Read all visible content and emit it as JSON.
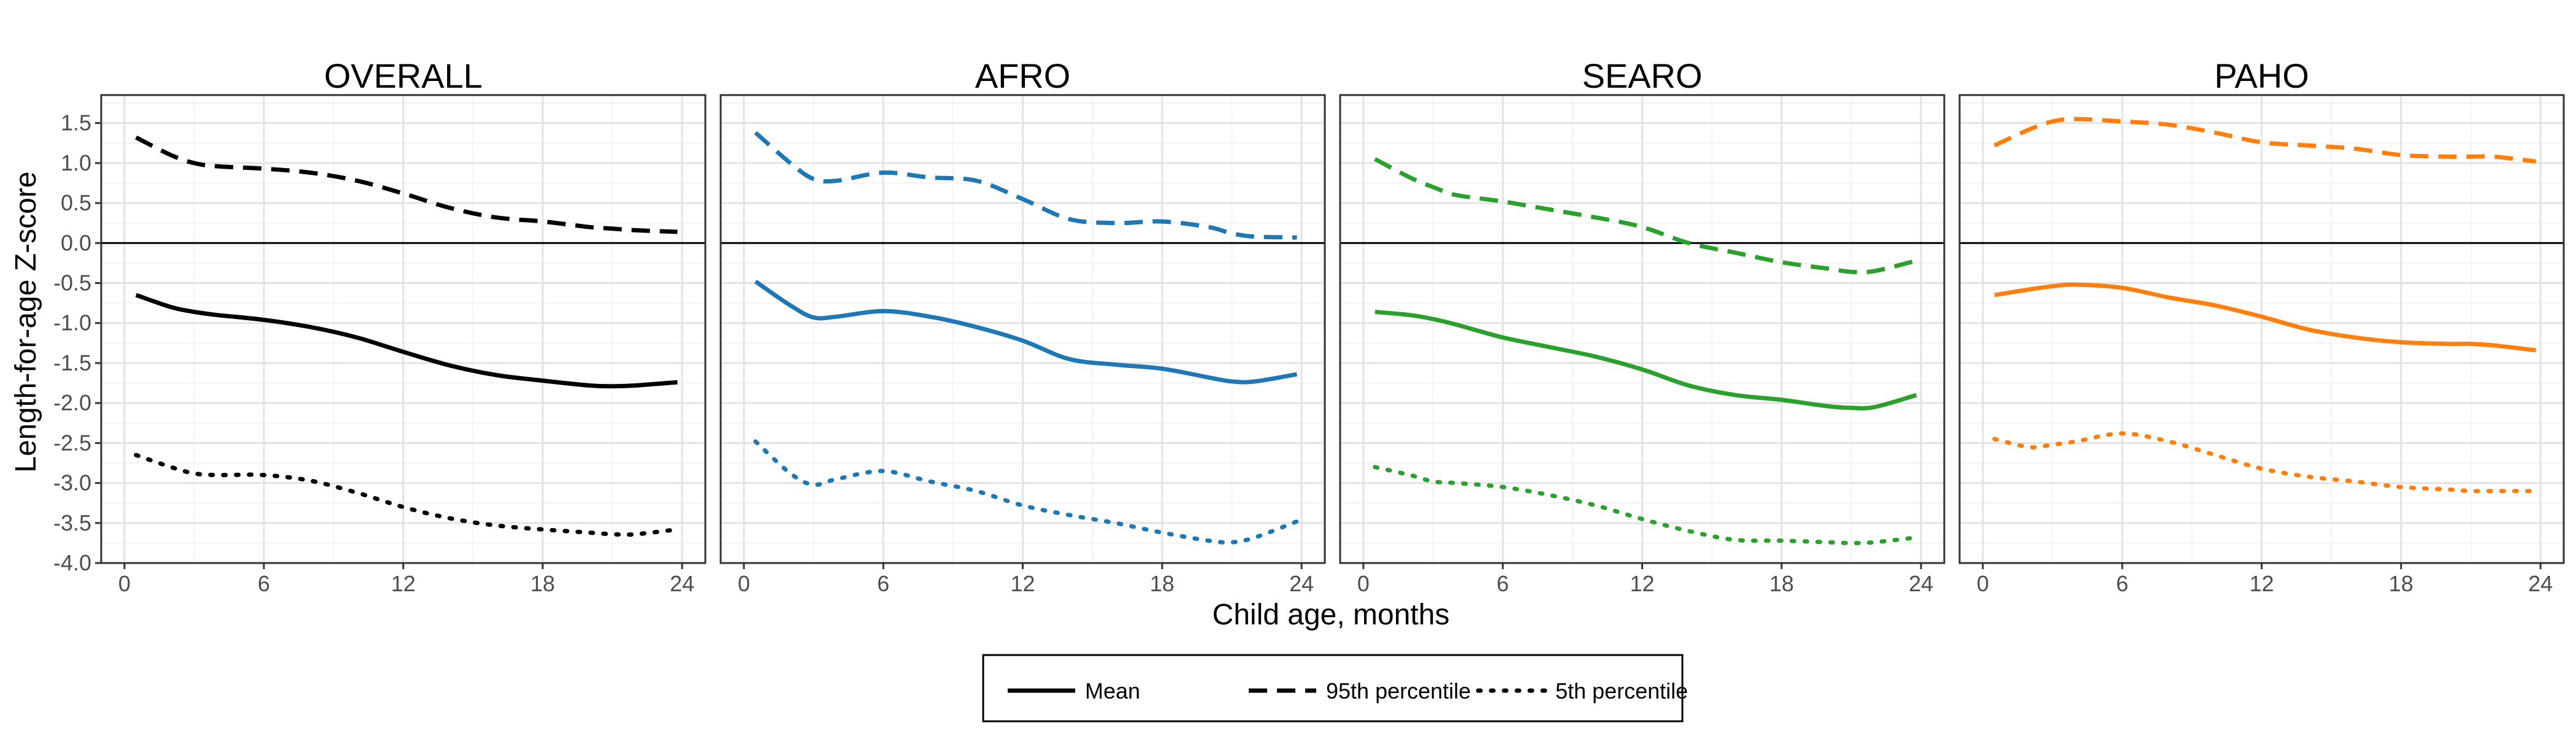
{
  "chart_data": {
    "type": "line",
    "xlabel": "Child age, months",
    "ylabel": "Length-for-age Z-score",
    "xlim": [
      -1,
      25
    ],
    "ylim": [
      -4.0,
      1.85
    ],
    "x_ticks": [
      0,
      6,
      12,
      18,
      24
    ],
    "y_ticks": [
      1.5,
      1.0,
      0.5,
      0.0,
      -0.5,
      -1.0,
      -1.5,
      -2.0,
      -2.5,
      -3.0,
      -3.5,
      -4.0
    ],
    "y_tick_labels": [
      "1.5",
      "1.0",
      "0.5",
      "0.0",
      "-0.5",
      "-1.0",
      "-1.5",
      "-2.0",
      "-2.5",
      "-3.0",
      "-3.5",
      "-4.0"
    ],
    "grid": true,
    "reference_line": 0,
    "legend": {
      "position": "bottom",
      "entries": [
        {
          "label": "Mean",
          "linetype": "solid"
        },
        {
          "label": "95th percentile",
          "linetype": "dashed"
        },
        {
          "label": "5th percentile",
          "linetype": "dotted"
        }
      ]
    },
    "x": [
      0.5,
      2,
      3,
      4,
      6,
      8,
      10,
      12,
      14,
      16,
      18,
      20,
      21,
      22,
      23.8
    ],
    "panels": [
      {
        "title": "OVERALL",
        "color": "#000000",
        "series": [
          {
            "name": "Mean",
            "values": [
              -0.65,
              -0.8,
              -0.86,
              -0.9,
              -0.96,
              -1.05,
              -1.18,
              -1.36,
              -1.53,
              -1.65,
              -1.72,
              -1.78,
              -1.79,
              -1.78,
              -1.74
            ]
          },
          {
            "name": "95th percentile",
            "values": [
              1.32,
              1.1,
              1.0,
              0.96,
              0.93,
              0.88,
              0.78,
              0.62,
              0.44,
              0.32,
              0.27,
              0.2,
              0.18,
              0.16,
              0.14
            ]
          },
          {
            "name": "5th percentile",
            "values": [
              -2.65,
              -2.8,
              -2.88,
              -2.9,
              -2.9,
              -2.97,
              -3.12,
              -3.3,
              -3.44,
              -3.53,
              -3.58,
              -3.62,
              -3.64,
              -3.64,
              -3.58
            ]
          }
        ]
      },
      {
        "title": "AFRO",
        "color": "#1f77b4",
        "series": [
          {
            "name": "Mean",
            "values": [
              -0.48,
              -0.78,
              -0.93,
              -0.92,
              -0.85,
              -0.92,
              -1.05,
              -1.22,
              -1.45,
              -1.52,
              -1.57,
              -1.68,
              -1.73,
              -1.73,
              -1.64
            ]
          },
          {
            "name": "95th percentile",
            "values": [
              1.38,
              1.0,
              0.8,
              0.78,
              0.88,
              0.82,
              0.78,
              0.55,
              0.3,
              0.25,
              0.27,
              0.2,
              0.12,
              0.08,
              0.07
            ]
          },
          {
            "name": "5th percentile",
            "values": [
              -2.48,
              -2.88,
              -3.02,
              -2.95,
              -2.85,
              -2.98,
              -3.1,
              -3.28,
              -3.4,
              -3.5,
              -3.62,
              -3.72,
              -3.74,
              -3.68,
              -3.48
            ]
          }
        ]
      },
      {
        "title": "SEARO",
        "color": "#2ca02c",
        "series": [
          {
            "name": "Mean",
            "values": [
              -0.86,
              -0.9,
              -0.95,
              -1.02,
              -1.18,
              -1.3,
              -1.42,
              -1.58,
              -1.78,
              -1.9,
              -1.96,
              -2.04,
              -2.06,
              -2.05,
              -1.9
            ]
          },
          {
            "name": "95th percentile",
            "values": [
              1.05,
              0.82,
              0.7,
              0.6,
              0.52,
              0.42,
              0.32,
              0.2,
              0.0,
              -0.12,
              -0.24,
              -0.32,
              -0.36,
              -0.35,
              -0.22
            ]
          },
          {
            "name": "5th percentile",
            "values": [
              -2.8,
              -2.9,
              -2.98,
              -3.0,
              -3.05,
              -3.15,
              -3.28,
              -3.45,
              -3.6,
              -3.71,
              -3.72,
              -3.74,
              -3.75,
              -3.74,
              -3.68
            ]
          }
        ]
      },
      {
        "title": "PAHO",
        "color": "#ff7f0e",
        "series": [
          {
            "name": "Mean",
            "values": [
              -0.65,
              -0.58,
              -0.54,
              -0.52,
              -0.56,
              -0.68,
              -0.78,
              -0.92,
              -1.08,
              -1.18,
              -1.24,
              -1.26,
              -1.26,
              -1.28,
              -1.34
            ]
          },
          {
            "name": "95th percentile",
            "values": [
              1.22,
              1.42,
              1.52,
              1.55,
              1.52,
              1.48,
              1.38,
              1.26,
              1.22,
              1.18,
              1.1,
              1.08,
              1.08,
              1.08,
              1.02
            ]
          },
          {
            "name": "5th percentile",
            "values": [
              -2.45,
              -2.55,
              -2.52,
              -2.48,
              -2.38,
              -2.48,
              -2.65,
              -2.82,
              -2.92,
              -2.98,
              -3.05,
              -3.08,
              -3.1,
              -3.1,
              -3.1
            ]
          }
        ]
      }
    ]
  }
}
